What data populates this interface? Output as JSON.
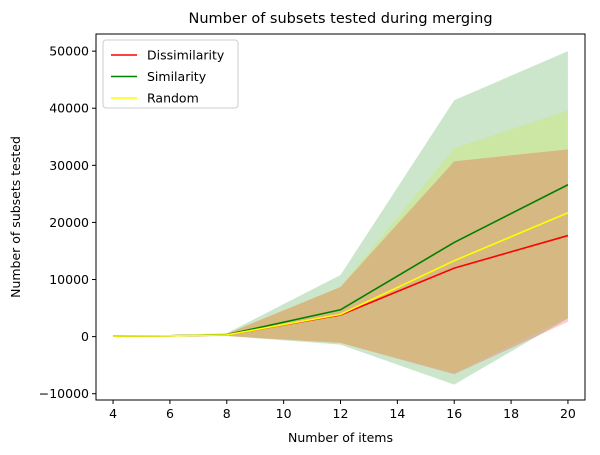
{
  "chart_data": {
    "type": "line",
    "title": "Number of subsets tested during merging",
    "xlabel": "Number of items",
    "ylabel": "Number of subsets tested",
    "xlim": [
      3.4,
      20.6
    ],
    "ylim": [
      -11100,
      53000
    ],
    "xticks": [
      4,
      6,
      8,
      10,
      12,
      14,
      16,
      18,
      20
    ],
    "yticks": [
      -10000,
      0,
      10000,
      20000,
      30000,
      40000,
      50000
    ],
    "xtick_labels": [
      "4",
      "6",
      "8",
      "10",
      "12",
      "14",
      "16",
      "18",
      "20"
    ],
    "ytick_labels": [
      "−10000",
      "0",
      "10000",
      "20000",
      "30000",
      "40000",
      "50000"
    ],
    "x": [
      4,
      6,
      8,
      12,
      16,
      20
    ],
    "grid": false,
    "legend_position": "top-left",
    "series": [
      {
        "name": "Dissimilarity",
        "color": "#ff0000",
        "values": [
          100,
          150,
          300,
          3800,
          12000,
          17700
        ],
        "lower": [
          -50,
          20,
          100,
          -1100,
          -6600,
          2600
        ],
        "upper": [
          250,
          280,
          500,
          8700,
          30700,
          32800
        ]
      },
      {
        "name": "Similarity",
        "color": "#008000",
        "values": [
          100,
          150,
          350,
          4700,
          16500,
          26600
        ],
        "lower": [
          -50,
          20,
          100,
          -1400,
          -8400,
          3200
        ],
        "upper": [
          250,
          280,
          600,
          10800,
          41400,
          50000
        ]
      },
      {
        "name": "Random",
        "color": "#ffff00",
        "values": [
          100,
          150,
          300,
          3900,
          13300,
          21700
        ],
        "lower": [
          -50,
          20,
          100,
          -1100,
          -6400,
          3300
        ],
        "upper": [
          250,
          280,
          500,
          8700,
          33000,
          39600
        ]
      }
    ]
  }
}
